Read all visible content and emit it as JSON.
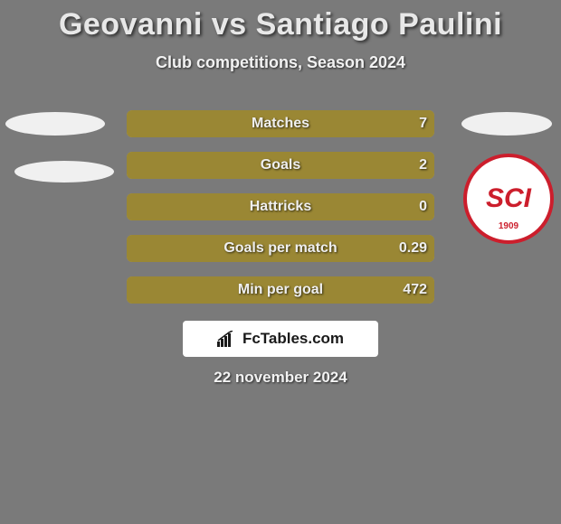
{
  "background_color": "#7a7a7a",
  "title": {
    "text": "Geovanni vs Santiago Paulini",
    "color": "#e8e8e8",
    "fontsize": 34
  },
  "subtitle": {
    "text": "Club competitions, Season 2024",
    "color": "#f2f2f2",
    "fontsize": 18
  },
  "avatars": {
    "left_placeholder_color": "#f0f0f0",
    "right_placeholder_color": "#f0f0f0",
    "club_badge": {
      "bg": "#ffffff",
      "ring": "#cc1e2c",
      "text": "SCI",
      "text_color": "#cc1e2c",
      "year": "1909"
    }
  },
  "bars": {
    "track_color": "#b9a23f",
    "fill_color": "#9a8734",
    "label_color": "#efefef",
    "value_color": "#efefef",
    "rows": [
      {
        "label": "Matches",
        "right_value": "7",
        "fill_pct": 100
      },
      {
        "label": "Goals",
        "right_value": "2",
        "fill_pct": 100
      },
      {
        "label": "Hattricks",
        "right_value": "0",
        "fill_pct": 100
      },
      {
        "label": "Goals per match",
        "right_value": "0.29",
        "fill_pct": 100
      },
      {
        "label": "Min per goal",
        "right_value": "472",
        "fill_pct": 100
      }
    ]
  },
  "branding": {
    "bg": "#ffffff",
    "text_color": "#1a1a1a",
    "text": "FcTables.com"
  },
  "date": {
    "text": "22 november 2024",
    "color": "#f2f2f2"
  }
}
